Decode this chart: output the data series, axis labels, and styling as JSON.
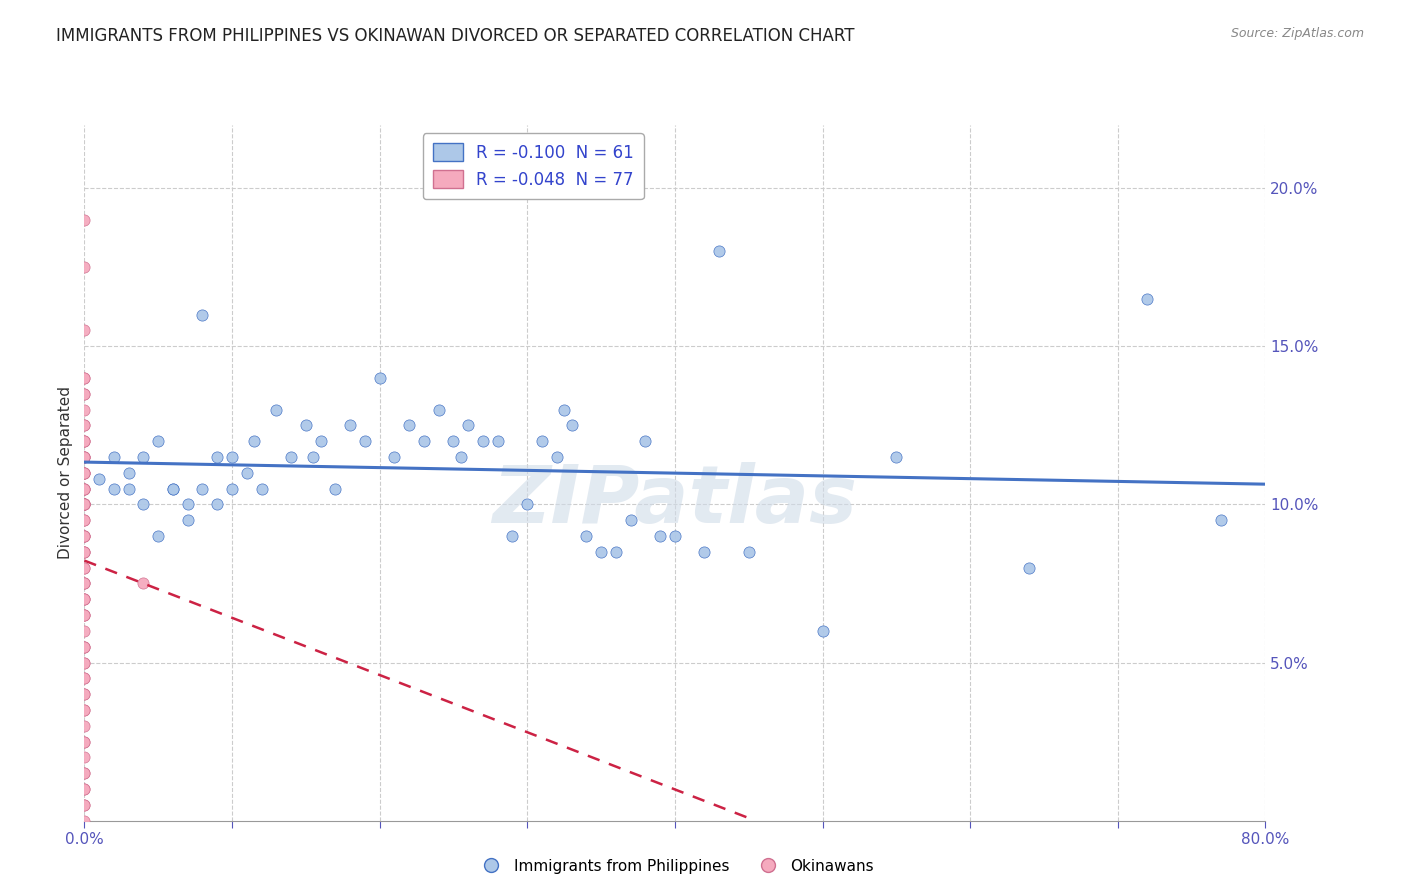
{
  "title": "IMMIGRANTS FROM PHILIPPINES VS OKINAWAN DIVORCED OR SEPARATED CORRELATION CHART",
  "source_text": "Source: ZipAtlas.com",
  "ylabel": "Divorced or Separated",
  "xlim": [
    0.0,
    0.8
  ],
  "ylim": [
    0.0,
    0.22
  ],
  "xtick_positions": [
    0.0,
    0.8
  ],
  "xtick_labels": [
    "0.0%",
    "80.0%"
  ],
  "ytick_positions": [
    0.05,
    0.1,
    0.15,
    0.2
  ],
  "ytick_labels": [
    "5.0%",
    "10.0%",
    "15.0%",
    "20.0%"
  ],
  "grid_yticks": [
    0.05,
    0.1,
    0.15,
    0.2
  ],
  "grid_xticks": [
    0.0,
    0.1,
    0.2,
    0.3,
    0.4,
    0.5,
    0.6,
    0.7,
    0.8
  ],
  "blue_R": -0.1,
  "blue_N": 61,
  "pink_R": -0.048,
  "pink_N": 77,
  "blue_color": "#adc8e8",
  "pink_color": "#f5aabe",
  "blue_line_color": "#4472c4",
  "pink_line_color": "#cc2244",
  "legend_label_blue": "Immigrants from Philippines",
  "legend_label_pink": "Okinawans",
  "watermark": "ZIPatlas",
  "background_color": "#ffffff",
  "title_fontsize": 12,
  "tick_color": "#5555bb",
  "blue_scatter_x": [
    0.01,
    0.02,
    0.02,
    0.03,
    0.03,
    0.04,
    0.04,
    0.05,
    0.05,
    0.06,
    0.06,
    0.07,
    0.07,
    0.08,
    0.08,
    0.09,
    0.09,
    0.1,
    0.1,
    0.11,
    0.115,
    0.12,
    0.13,
    0.14,
    0.15,
    0.155,
    0.16,
    0.17,
    0.18,
    0.19,
    0.2,
    0.21,
    0.22,
    0.23,
    0.24,
    0.25,
    0.255,
    0.26,
    0.27,
    0.28,
    0.29,
    0.3,
    0.31,
    0.32,
    0.325,
    0.33,
    0.34,
    0.35,
    0.36,
    0.37,
    0.38,
    0.39,
    0.4,
    0.42,
    0.43,
    0.45,
    0.5,
    0.55,
    0.64,
    0.72,
    0.77
  ],
  "blue_scatter_y": [
    0.108,
    0.115,
    0.105,
    0.105,
    0.11,
    0.115,
    0.1,
    0.12,
    0.09,
    0.105,
    0.105,
    0.1,
    0.095,
    0.16,
    0.105,
    0.115,
    0.1,
    0.115,
    0.105,
    0.11,
    0.12,
    0.105,
    0.13,
    0.115,
    0.125,
    0.115,
    0.12,
    0.105,
    0.125,
    0.12,
    0.14,
    0.115,
    0.125,
    0.12,
    0.13,
    0.12,
    0.115,
    0.125,
    0.12,
    0.12,
    0.09,
    0.1,
    0.12,
    0.115,
    0.13,
    0.125,
    0.09,
    0.085,
    0.085,
    0.095,
    0.12,
    0.09,
    0.09,
    0.085,
    0.18,
    0.085,
    0.06,
    0.115,
    0.08,
    0.165,
    0.095
  ],
  "pink_scatter_x": [
    0.0,
    0.0,
    0.0,
    0.0,
    0.0,
    0.0,
    0.0,
    0.0,
    0.0,
    0.0,
    0.0,
    0.0,
    0.0,
    0.0,
    0.0,
    0.0,
    0.0,
    0.0,
    0.0,
    0.0,
    0.0,
    0.0,
    0.0,
    0.0,
    0.0,
    0.0,
    0.0,
    0.0,
    0.0,
    0.0,
    0.0,
    0.0,
    0.0,
    0.0,
    0.0,
    0.0,
    0.0,
    0.0,
    0.0,
    0.0,
    0.0,
    0.0,
    0.0,
    0.0,
    0.0,
    0.0,
    0.0,
    0.0,
    0.0,
    0.0,
    0.0,
    0.0,
    0.0,
    0.0,
    0.0,
    0.0,
    0.0,
    0.0,
    0.0,
    0.0,
    0.0,
    0.0,
    0.0,
    0.0,
    0.0,
    0.0,
    0.0,
    0.0,
    0.0,
    0.0,
    0.0,
    0.0,
    0.0,
    0.0,
    0.0,
    0.0,
    0.04
  ],
  "pink_scatter_y": [
    0.19,
    0.175,
    0.155,
    0.14,
    0.135,
    0.125,
    0.12,
    0.115,
    0.115,
    0.11,
    0.105,
    0.105,
    0.1,
    0.1,
    0.1,
    0.1,
    0.095,
    0.09,
    0.09,
    0.085,
    0.085,
    0.08,
    0.075,
    0.075,
    0.07,
    0.07,
    0.065,
    0.065,
    0.06,
    0.055,
    0.055,
    0.05,
    0.045,
    0.04,
    0.035,
    0.03,
    0.025,
    0.02,
    0.015,
    0.01,
    0.005,
    0.0,
    0.135,
    0.125,
    0.12,
    0.115,
    0.115,
    0.11,
    0.11,
    0.105,
    0.105,
    0.1,
    0.1,
    0.1,
    0.095,
    0.09,
    0.085,
    0.08,
    0.075,
    0.07,
    0.065,
    0.055,
    0.05,
    0.045,
    0.04,
    0.035,
    0.025,
    0.015,
    0.01,
    0.005,
    0.14,
    0.13,
    0.12,
    0.11,
    0.1,
    0.09,
    0.075
  ]
}
